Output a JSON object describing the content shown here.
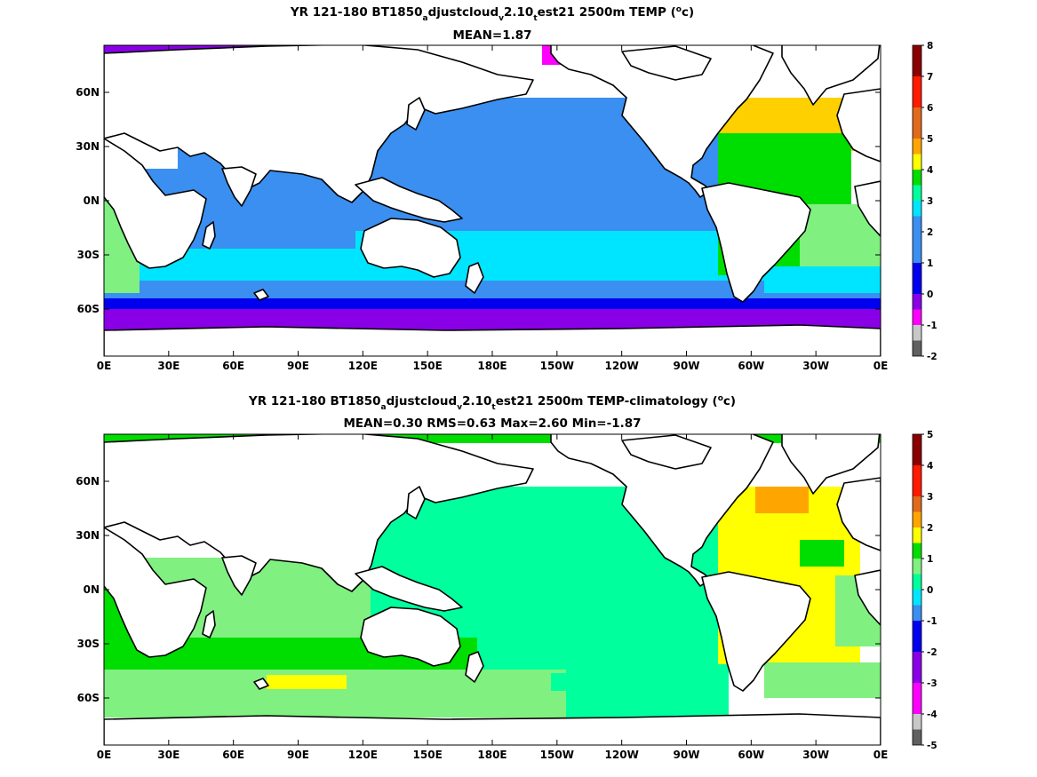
{
  "chart_data": [
    {
      "type": "heatmap",
      "title_parts": [
        "YR 121-180 BT1850",
        "a",
        "djustcloud",
        "v",
        "2.10",
        "t",
        "est21 2500m TEMP (",
        "o",
        "c)"
      ],
      "subtitle": "MEAN=1.87",
      "x_tick_labels": [
        "0E",
        "30E",
        "60E",
        "90E",
        "120E",
        "150E",
        "180E",
        "150W",
        "120W",
        "90W",
        "60W",
        "30W",
        "0E"
      ],
      "y_tick_labels": [
        "60N",
        "30N",
        "0N",
        "30S",
        "60S"
      ],
      "colorbar_labels": [
        "8",
        "7",
        "6",
        "5",
        "4",
        "3",
        "2",
        "1",
        "0",
        "-1",
        "-2"
      ],
      "colorbar_colors": [
        "#8b0000",
        "#ff1a00",
        "#e06a1e",
        "#ffa500",
        "#ffff00",
        "#00dd00",
        "#00ff9d",
        "#00e5ff",
        "#3a8ff0",
        "#0000ee",
        "#8a00e6",
        "#ff00ff",
        "#c8c8c8",
        "#606060"
      ],
      "colorbar_ranges": [
        [
          7,
          8
        ],
        [
          6,
          7
        ],
        [
          5,
          6
        ],
        [
          4.5,
          5
        ],
        [
          4,
          4.5
        ],
        [
          3.5,
          4
        ],
        [
          3,
          3.5
        ],
        [
          2.5,
          3
        ],
        [
          1,
          2.5
        ],
        [
          0,
          1
        ],
        [
          -0.5,
          0
        ],
        [
          -1,
          -0.5
        ],
        [
          -1.5,
          -1
        ],
        [
          -2,
          -1.5
        ]
      ],
      "regions": {
        "pacific_indian_deep": {
          "value_range": [
            1,
            2
          ],
          "color": "#3a8ff0"
        },
        "southern_ocean_band": {
          "value_range": [
            2,
            3
          ],
          "color": "#00e5ff"
        },
        "antarctic_margin": {
          "value_range": [
            -1,
            0
          ],
          "color": "#8a00e6"
        },
        "north_atlantic": {
          "value_range": [
            4,
            5
          ],
          "color": "#ffd000"
        },
        "south_atlantic": {
          "value_range": [
            3,
            4
          ],
          "color": "#00dd00"
        }
      }
    },
    {
      "type": "heatmap",
      "title_parts": [
        "YR 121-180 BT1850",
        "a",
        "djustcloud",
        "v",
        "2.10",
        "t",
        "est21 2500m TEMP-climatology (",
        "o",
        "c)"
      ],
      "subtitle": "MEAN=0.30   RMS=0.63   Max=2.60   Min=-1.87",
      "x_tick_labels": [
        "0E",
        "30E",
        "60E",
        "90E",
        "120E",
        "150E",
        "180E",
        "150W",
        "120W",
        "90W",
        "60W",
        "30W",
        "0E"
      ],
      "y_tick_labels": [
        "60N",
        "30N",
        "0N",
        "30S",
        "60S"
      ],
      "colorbar_labels": [
        "5",
        "4",
        "3",
        "2",
        "1",
        "0",
        "-1",
        "-2",
        "-3",
        "-4",
        "-5"
      ],
      "colorbar_colors": [
        "#8b0000",
        "#ff1a00",
        "#e06a1e",
        "#ffa500",
        "#ffff00",
        "#00dd00",
        "#80f080",
        "#00ff9d",
        "#00e5ff",
        "#3a8ff0",
        "#0000ee",
        "#8a00e6",
        "#ff00ff",
        "#c8c8c8",
        "#606060"
      ],
      "colorbar_ranges": [
        [
          4,
          5
        ],
        [
          3,
          4
        ],
        [
          2.5,
          3
        ],
        [
          2,
          2.5
        ],
        [
          1.5,
          2
        ],
        [
          1,
          1.5
        ],
        [
          0.5,
          1
        ],
        [
          0,
          0.5
        ],
        [
          -0.5,
          0
        ],
        [
          -1,
          -0.5
        ],
        [
          -2,
          -1
        ],
        [
          -3,
          -2
        ],
        [
          -4,
          -3
        ],
        [
          -4.5,
          -4
        ],
        [
          -5,
          -4.5
        ]
      ],
      "regions": {
        "pacific": {
          "value_range": [
            0,
            0.5
          ],
          "color": "#00ff9d"
        },
        "indian": {
          "value_range": [
            0.5,
            1
          ],
          "color": "#80f080"
        },
        "north_atlantic": {
          "value_range": [
            1.5,
            2
          ],
          "color": "#ffff00"
        },
        "southern_band": {
          "value_range": [
            1,
            1.5
          ],
          "color": "#00dd00"
        }
      }
    }
  ]
}
